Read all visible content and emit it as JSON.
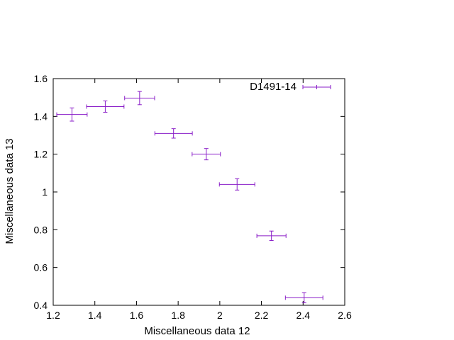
{
  "chart_data": {
    "type": "scatter",
    "title": "",
    "xlabel": "Miscellaneous data 12",
    "ylabel": "Miscellaneous data 13",
    "xlim": [
      1.2,
      2.6
    ],
    "ylim": [
      0.4,
      1.6
    ],
    "xticks": [
      "1.2",
      "1.4",
      "1.6",
      "1.8",
      "2",
      "2.2",
      "2.4",
      "2.6"
    ],
    "yticks": [
      "0.4",
      "0.6",
      "0.8",
      "1",
      "1.2",
      "1.4",
      "1.6"
    ],
    "xtick_values": [
      1.2,
      1.4,
      1.6,
      1.8,
      2.0,
      2.2,
      2.4,
      2.6
    ],
    "ytick_values": [
      0.4,
      0.6,
      0.8,
      1.0,
      1.2,
      1.4,
      1.6
    ],
    "grid": false,
    "legend_position": "top-right",
    "color": "#8a1ec8",
    "series": [
      {
        "name": "D1491-14",
        "points": [
          {
            "x": 1.29,
            "y": 1.41,
            "xerr": 0.073,
            "yerr": 0.035
          },
          {
            "x": 1.45,
            "y": 1.452,
            "xerr": 0.09,
            "yerr": 0.03
          },
          {
            "x": 1.615,
            "y": 1.497,
            "xerr": 0.072,
            "yerr": 0.035
          },
          {
            "x": 1.778,
            "y": 1.31,
            "xerr": 0.09,
            "yerr": 0.025
          },
          {
            "x": 1.935,
            "y": 1.2,
            "xerr": 0.068,
            "yerr": 0.03
          },
          {
            "x": 2.083,
            "y": 1.04,
            "xerr": 0.085,
            "yerr": 0.03
          },
          {
            "x": 2.248,
            "y": 0.768,
            "xerr": 0.07,
            "yerr": 0.025
          },
          {
            "x": 2.405,
            "y": 0.44,
            "xerr": 0.09,
            "yerr": 0.027
          }
        ]
      }
    ]
  }
}
